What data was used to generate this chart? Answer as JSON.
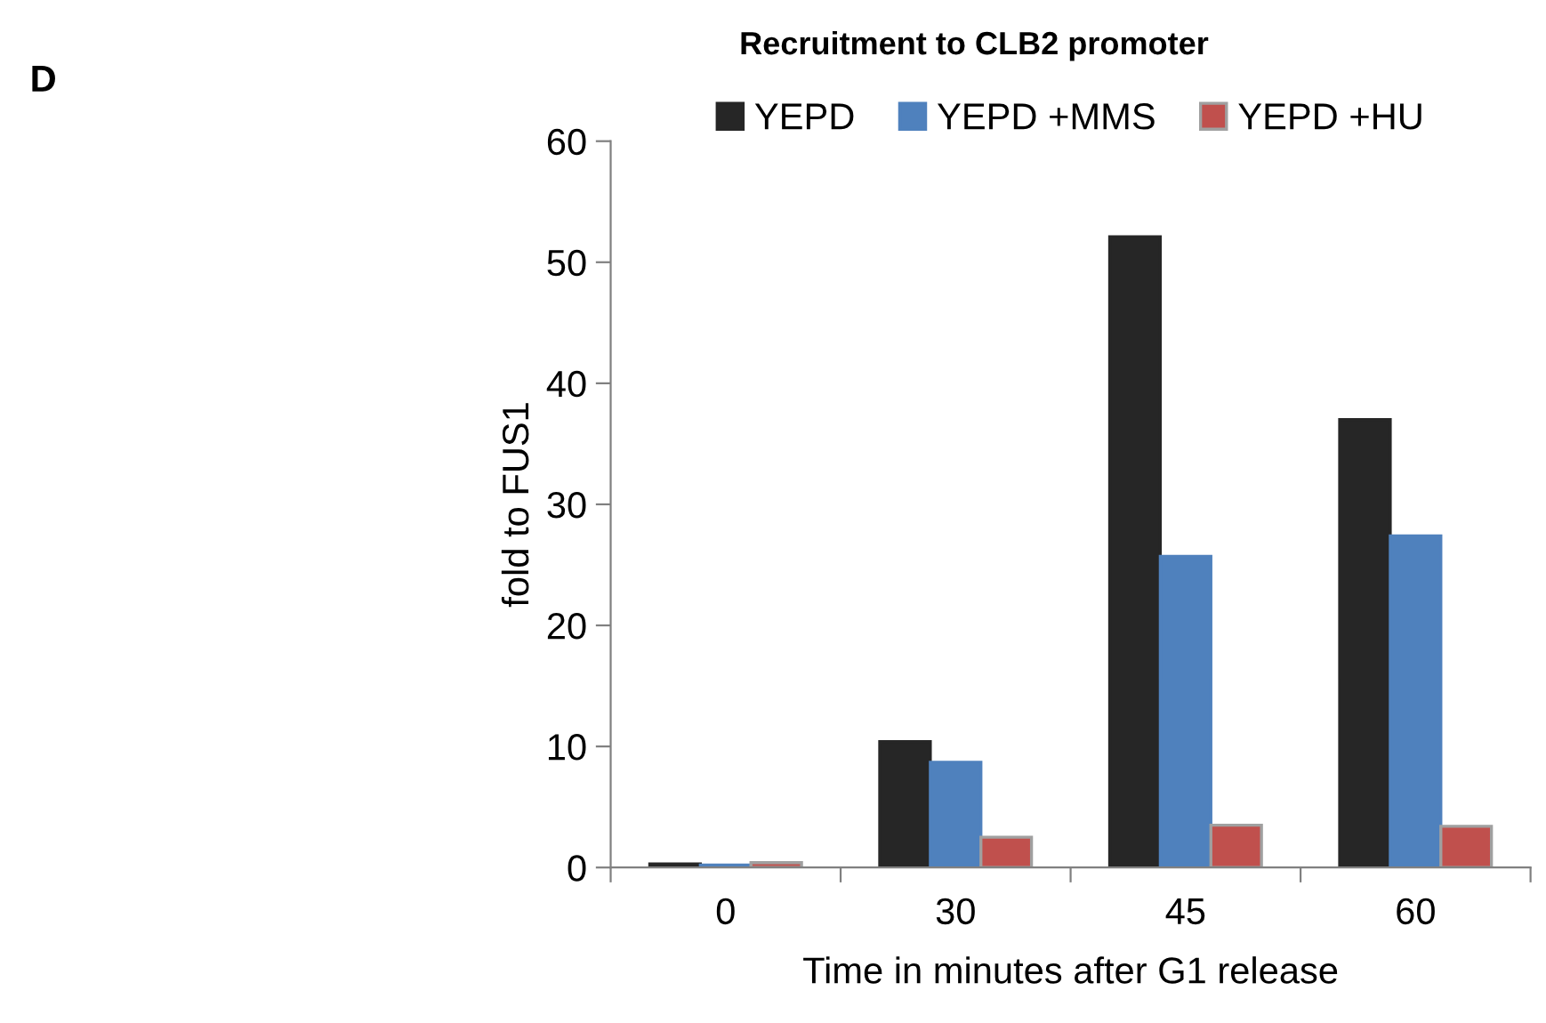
{
  "chart_data": {
    "type": "bar",
    "title": "Recruitment to CLB2 promoter",
    "xlabel": "Time in minutes after G1 release",
    "ylabel": "fold to FUS1",
    "categories": [
      "0",
      "30",
      "45",
      "60"
    ],
    "series": [
      {
        "name": "YEPD",
        "color": "#262626",
        "values": [
          0.3,
          10.4,
          52.1,
          37.0
        ]
      },
      {
        "name": "YEPD +MMS",
        "color": "#4f81bd",
        "values": [
          0.2,
          8.7,
          25.7,
          27.4
        ]
      },
      {
        "name": "YEPD +HU",
        "color": "#c0504d",
        "values": [
          0.4,
          2.5,
          3.5,
          3.4
        ]
      }
    ],
    "ylim": [
      0,
      60
    ],
    "yticks": [
      0,
      10,
      20,
      30,
      40,
      50,
      60
    ],
    "grid": false,
    "legend": "top",
    "annotations": [
      "D"
    ]
  }
}
